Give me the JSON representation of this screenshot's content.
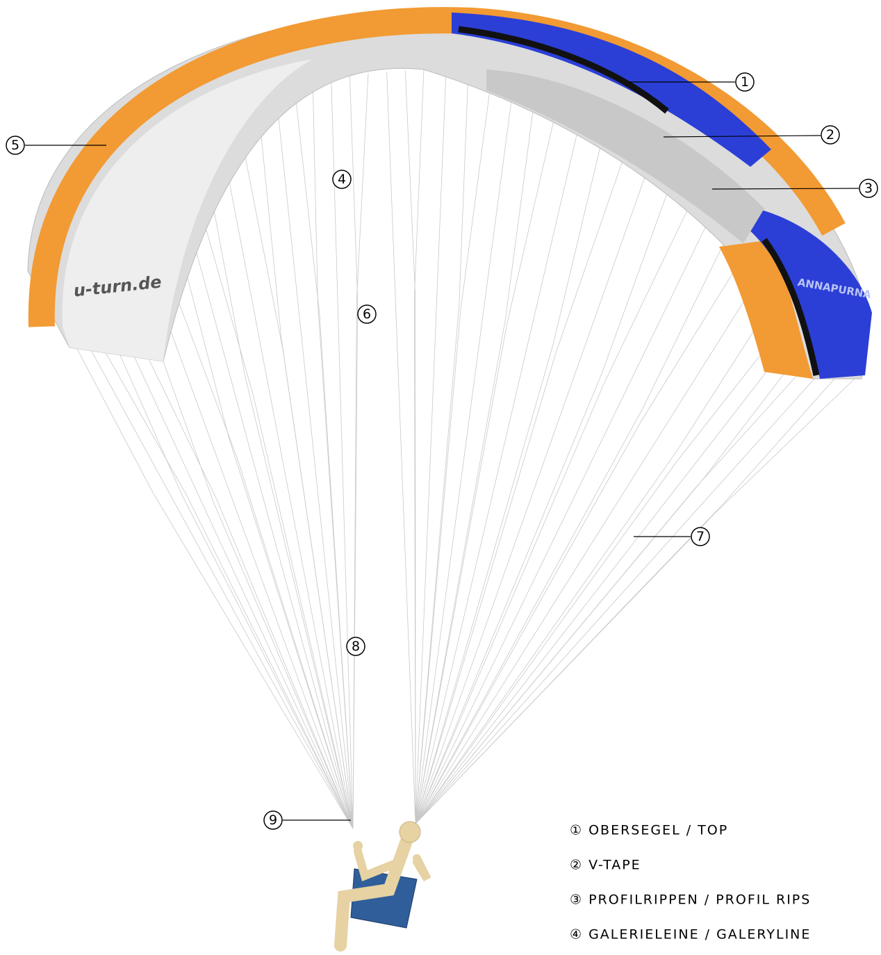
{
  "wing_text": "u-turn.de",
  "logo_text": "ANNAPURNA",
  "callouts": [
    "1",
    "2",
    "3",
    "4",
    "5",
    "6",
    "7",
    "8",
    "9"
  ],
  "legend": [
    "① OBERSEGEL / TOP",
    "② V-TAPE",
    "③ PROFILRIPPEN / PROFIL RIPS",
    "④ GALERIELEINE / GALERYLINE"
  ]
}
